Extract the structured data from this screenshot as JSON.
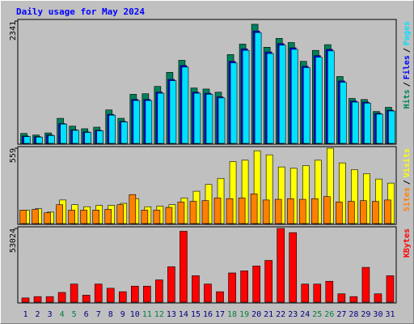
{
  "chart_data": {
    "type": "bar",
    "title": "Daily usage for May 2024",
    "categories": [
      1,
      2,
      3,
      4,
      5,
      6,
      7,
      8,
      9,
      10,
      11,
      12,
      13,
      14,
      15,
      16,
      17,
      18,
      19,
      20,
      21,
      22,
      23,
      24,
      25,
      26,
      27,
      28,
      29,
      30,
      31
    ],
    "category_colors": [
      "#000080",
      "#000080",
      "#000080",
      "#008040",
      "#008040",
      "#000080",
      "#000080",
      "#000080",
      "#000080",
      "#000080",
      "#008040",
      "#008040",
      "#000080",
      "#000080",
      "#000080",
      "#000080",
      "#000080",
      "#008040",
      "#008040",
      "#000080",
      "#000080",
      "#000080",
      "#000080",
      "#000080",
      "#008040",
      "#008040",
      "#000080",
      "#000080",
      "#000080",
      "#000080",
      "#000080"
    ],
    "legend_separator": "/",
    "panels": [
      {
        "ylim": [
          0,
          2341
        ],
        "yticks": [
          2341
        ],
        "series": [
          {
            "name": "Hits",
            "color": "#00805c",
            "values": [
              190,
              160,
              200,
              480,
              330,
              280,
              310,
              640,
              480,
              940,
              950,
              1090,
              1360,
              1590,
              1060,
              1040,
              980,
              1700,
              1900,
              2280,
              1840,
              2010,
              1930,
              1570,
              1780,
              1890,
              1280,
              860,
              840,
              610,
              690
            ]
          },
          {
            "name": "Files",
            "color": "#0000ff",
            "values": [
              140,
              130,
              160,
              380,
              260,
              220,
              250,
              555,
              420,
              840,
              840,
              980,
              1225,
              1490,
              980,
              960,
              890,
              1570,
              1810,
              2150,
              1750,
              1910,
              1830,
              1475,
              1680,
              1800,
              1195,
              810,
              790,
              575,
              635
            ]
          },
          {
            "name": "Pages",
            "color": "#00e0ff",
            "values": [
              130,
              120,
              150,
              370,
              250,
              210,
              240,
              540,
              410,
              820,
              820,
              960,
              1200,
              1460,
              960,
              940,
              870,
              1540,
              1780,
              2120,
              1720,
              1880,
              1800,
              1450,
              1650,
              1770,
              1170,
              790,
              770,
              560,
              620
            ]
          }
        ]
      },
      {
        "ylim": [
          0,
          559
        ],
        "yticks": [
          559
        ],
        "series": [
          {
            "name": "Sites",
            "color": "#ff8000",
            "values": [
              100,
              105,
              80,
              140,
              100,
              100,
              100,
              105,
              140,
              215,
              100,
              100,
              120,
              160,
              165,
              170,
              190,
              185,
              190,
              220,
              175,
              180,
              185,
              180,
              185,
              200,
              160,
              165,
              170,
              165,
              175
            ]
          },
          {
            "name": "Visits",
            "color": "#ffff00",
            "values": [
              100,
              110,
              85,
              175,
              140,
              125,
              135,
              135,
              150,
              185,
              125,
              130,
              140,
              190,
              240,
              290,
              335,
              460,
              470,
              540,
              510,
              420,
              410,
              430,
              470,
              559,
              450,
              400,
              370,
              330,
              300
            ]
          }
        ]
      },
      {
        "ylim": [
          0,
          53024
        ],
        "yticks": [
          53024
        ],
        "series": [
          {
            "name": "KBytes",
            "color": "#ff0000",
            "values": [
              3000,
              4000,
              4000,
              7000,
              13000,
              5000,
              13000,
              10000,
              7500,
              11500,
              11500,
              16000,
              25500,
              51000,
              19000,
              13000,
              7500,
              21000,
              22500,
              26000,
              30000,
              53024,
              50000,
              13000,
              13000,
              15000,
              6000,
              4000,
              25000,
              6000,
              19000
            ]
          }
        ]
      }
    ]
  }
}
